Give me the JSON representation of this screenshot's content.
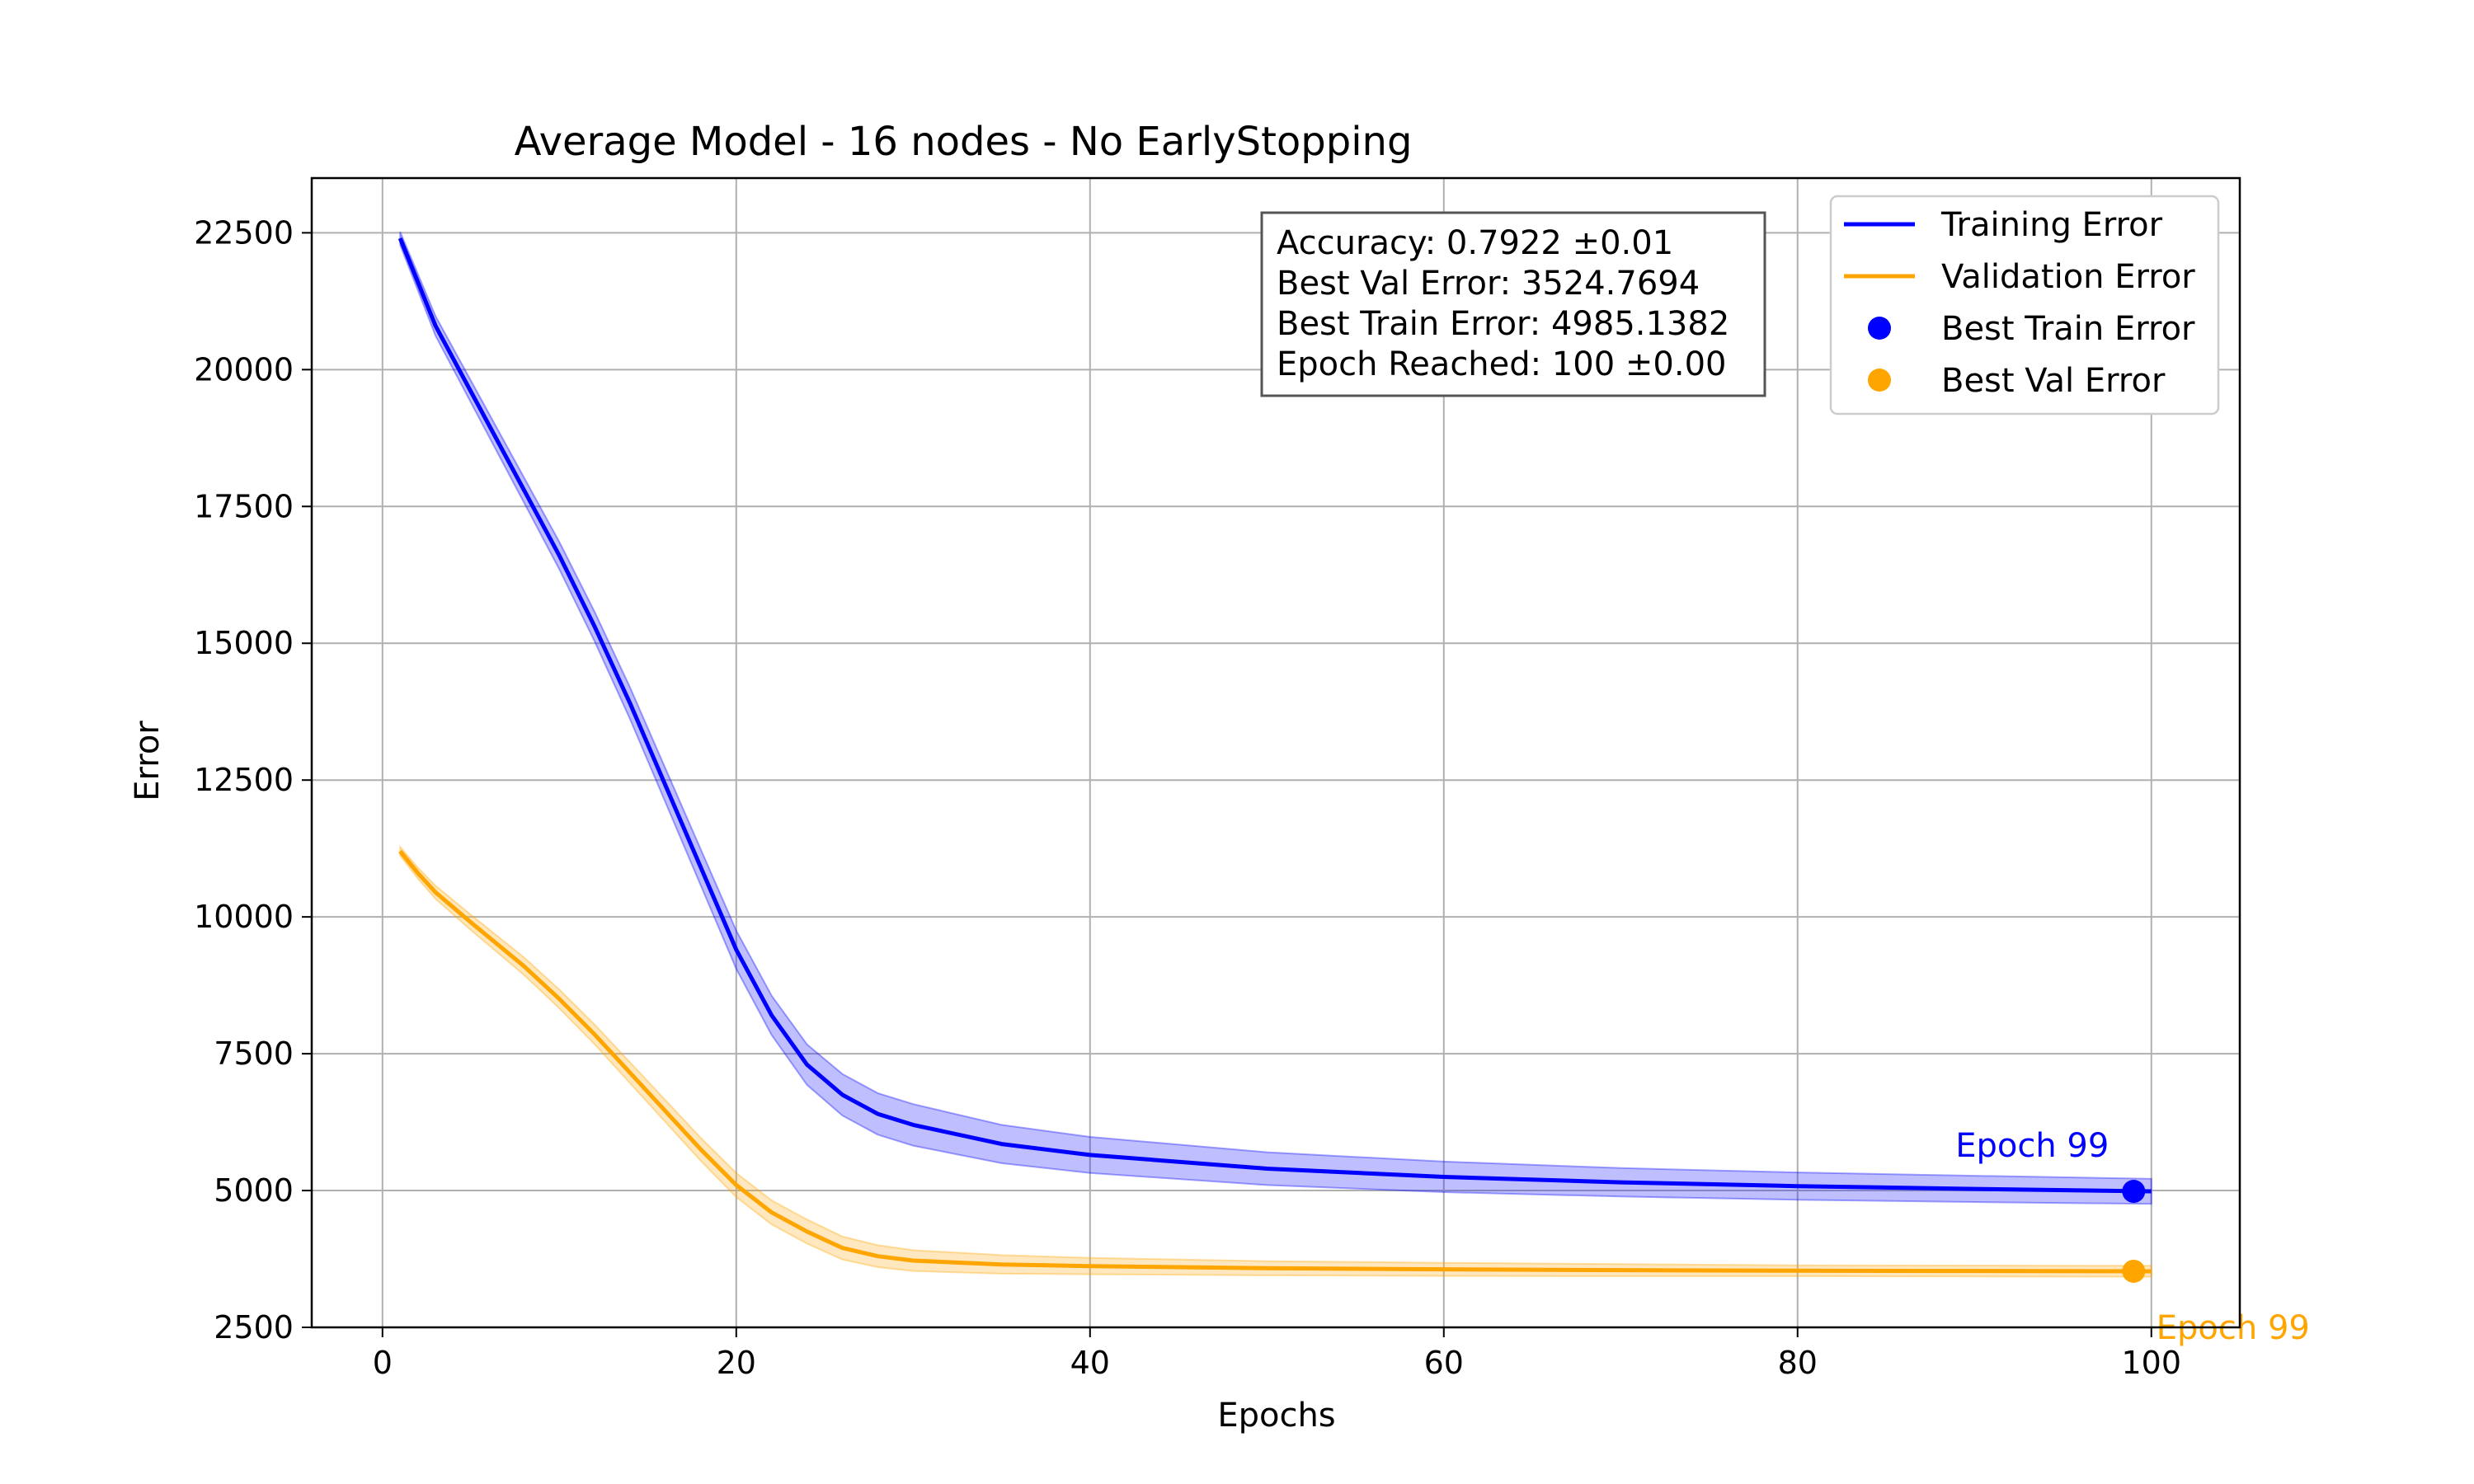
{
  "chart_data": {
    "type": "line",
    "title": "Average Model - 16 nodes - No EarlyStopping",
    "xlabel": "Epochs",
    "ylabel": "Error",
    "xlim": [
      -4,
      105
    ],
    "ylim": [
      2500,
      23500
    ],
    "xticks": [
      0,
      20,
      40,
      60,
      80,
      100
    ],
    "yticks": [
      2500,
      5000,
      7500,
      10000,
      12500,
      15000,
      17500,
      20000,
      22500
    ],
    "grid": true,
    "legend_position": "top-right",
    "series": [
      {
        "name": "Training Error",
        "color": "#0000ff",
        "x": [
          1,
          2,
          3,
          5,
          8,
          10,
          12,
          14,
          16,
          18,
          20,
          22,
          24,
          26,
          28,
          30,
          35,
          40,
          50,
          60,
          70,
          80,
          90,
          100
        ],
        "values": [
          22400,
          21600,
          20800,
          19600,
          17800,
          16600,
          15300,
          13900,
          12400,
          10900,
          9400,
          8200,
          7300,
          6750,
          6400,
          6200,
          5850,
          5650,
          5400,
          5250,
          5150,
          5080,
          5030,
          4985
        ],
        "band": [
          120,
          150,
          180,
          200,
          230,
          250,
          270,
          290,
          310,
          330,
          350,
          360,
          370,
          380,
          380,
          380,
          350,
          330,
          300,
          280,
          260,
          250,
          240,
          230
        ]
      },
      {
        "name": "Validation Error",
        "color": "#ffa500",
        "x": [
          1,
          2,
          3,
          5,
          8,
          10,
          12,
          14,
          16,
          18,
          20,
          22,
          24,
          26,
          28,
          30,
          35,
          40,
          50,
          60,
          70,
          80,
          90,
          100
        ],
        "values": [
          11200,
          10800,
          10450,
          9900,
          9100,
          8500,
          7850,
          7150,
          6450,
          5750,
          5100,
          4600,
          4250,
          3950,
          3800,
          3720,
          3650,
          3620,
          3580,
          3560,
          3545,
          3535,
          3530,
          3525
        ],
        "band": [
          80,
          100,
          120,
          140,
          160,
          170,
          180,
          190,
          200,
          210,
          220,
          220,
          220,
          210,
          200,
          190,
          170,
          150,
          130,
          120,
          110,
          100,
          100,
          100
        ]
      }
    ],
    "markers": [
      {
        "name": "Best Train Error",
        "x": 99,
        "y": 4985.1382,
        "color": "#0000ff",
        "label": "Epoch 99"
      },
      {
        "name": "Best Val Error",
        "x": 99,
        "y": 3524.7694,
        "color": "#ffa500",
        "label": "Epoch 99"
      }
    ],
    "annotation": [
      "Accuracy: 0.7922 ±0.01",
      "Best Val Error: 3524.7694",
      "Best Train Error: 4985.1382",
      "Epoch Reached: 100 ±0.00"
    ],
    "legend": [
      {
        "label": "Training Error",
        "kind": "line",
        "color": "#0000ff"
      },
      {
        "label": "Validation Error",
        "kind": "line",
        "color": "#ffa500"
      },
      {
        "label": "Best Train Error",
        "kind": "dot",
        "color": "#0000ff"
      },
      {
        "label": "Best Val Error",
        "kind": "dot",
        "color": "#ffa500"
      }
    ]
  }
}
